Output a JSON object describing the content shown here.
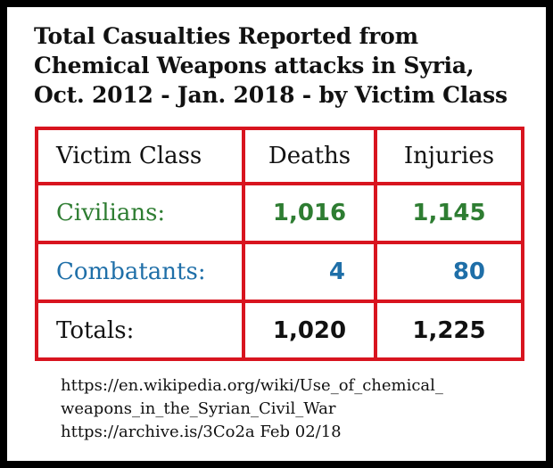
{
  "title": {
    "line1": "Total Casualties Reported from",
    "line2": "Chemical Weapons attacks in Syria,",
    "line3": "Oct. 2012 - Jan. 2018 - by Victim Class"
  },
  "table": {
    "headers": [
      "Victim Class",
      "Deaths",
      "Injuries"
    ],
    "rows": [
      {
        "label": "Civilians:",
        "deaths": "1,016",
        "injuries": "1,145"
      },
      {
        "label": "Combatants:",
        "deaths": "4",
        "injuries": "80"
      },
      {
        "label": "Totals:",
        "deaths": "1,020",
        "injuries": "1,225"
      }
    ]
  },
  "source": {
    "line1": "https://en.wikipedia.org/wiki/Use_of_chemical_",
    "line2": "weapons_in_the_Syrian_Civil_War",
    "line3": "https://archive.is/3Co2a  Feb 02/18"
  },
  "colors": {
    "border": "#d8141f",
    "civilians": "#2e7d32",
    "combatants": "#1f6fa8",
    "frame": "#000000"
  }
}
